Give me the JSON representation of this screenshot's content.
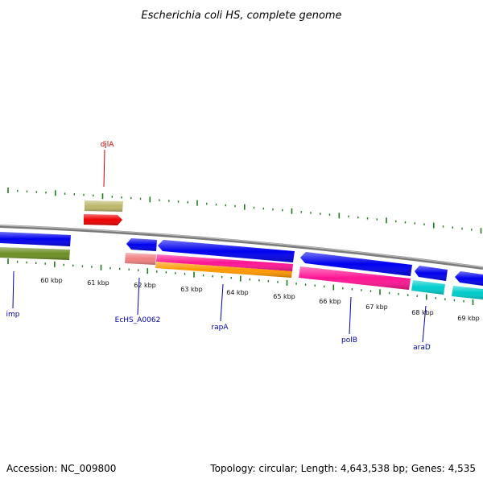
{
  "title": "Escherichia coli HS, complete genome",
  "footer": {
    "accession": "Accession: NC_009800",
    "stats": "Topology: circular; Length: 4,643,538 bp; Genes: 4,535"
  },
  "scale_labels": [
    "60 kbp",
    "61 kbp",
    "62 kbp",
    "63 kbp",
    "64 kbp",
    "65 kbp",
    "66 kbp",
    "67 kbp",
    "68 kbp",
    "69 kbp"
  ],
  "gene_labels": [
    {
      "text": "djlA",
      "color": "#cc0000"
    },
    {
      "text": "imp",
      "color": "#0000aa"
    },
    {
      "text": "EcHS_A0062",
      "color": "#0000aa"
    },
    {
      "text": "rapA",
      "color": "#0000aa"
    },
    {
      "text": "polB",
      "color": "#0000aa"
    },
    {
      "text": "araD",
      "color": "#0000aa"
    }
  ],
  "colors": {
    "backbone": "#888888",
    "ticks": "#1f7a1f",
    "cds_blue": "#0000ee",
    "olive": "#6b8e23",
    "khaki": "#bdb76b",
    "red": "#ee0000",
    "salmon": "#f08080",
    "pink": "#ff1493",
    "orange": "#ff9900",
    "cyan": "#00cccc"
  }
}
